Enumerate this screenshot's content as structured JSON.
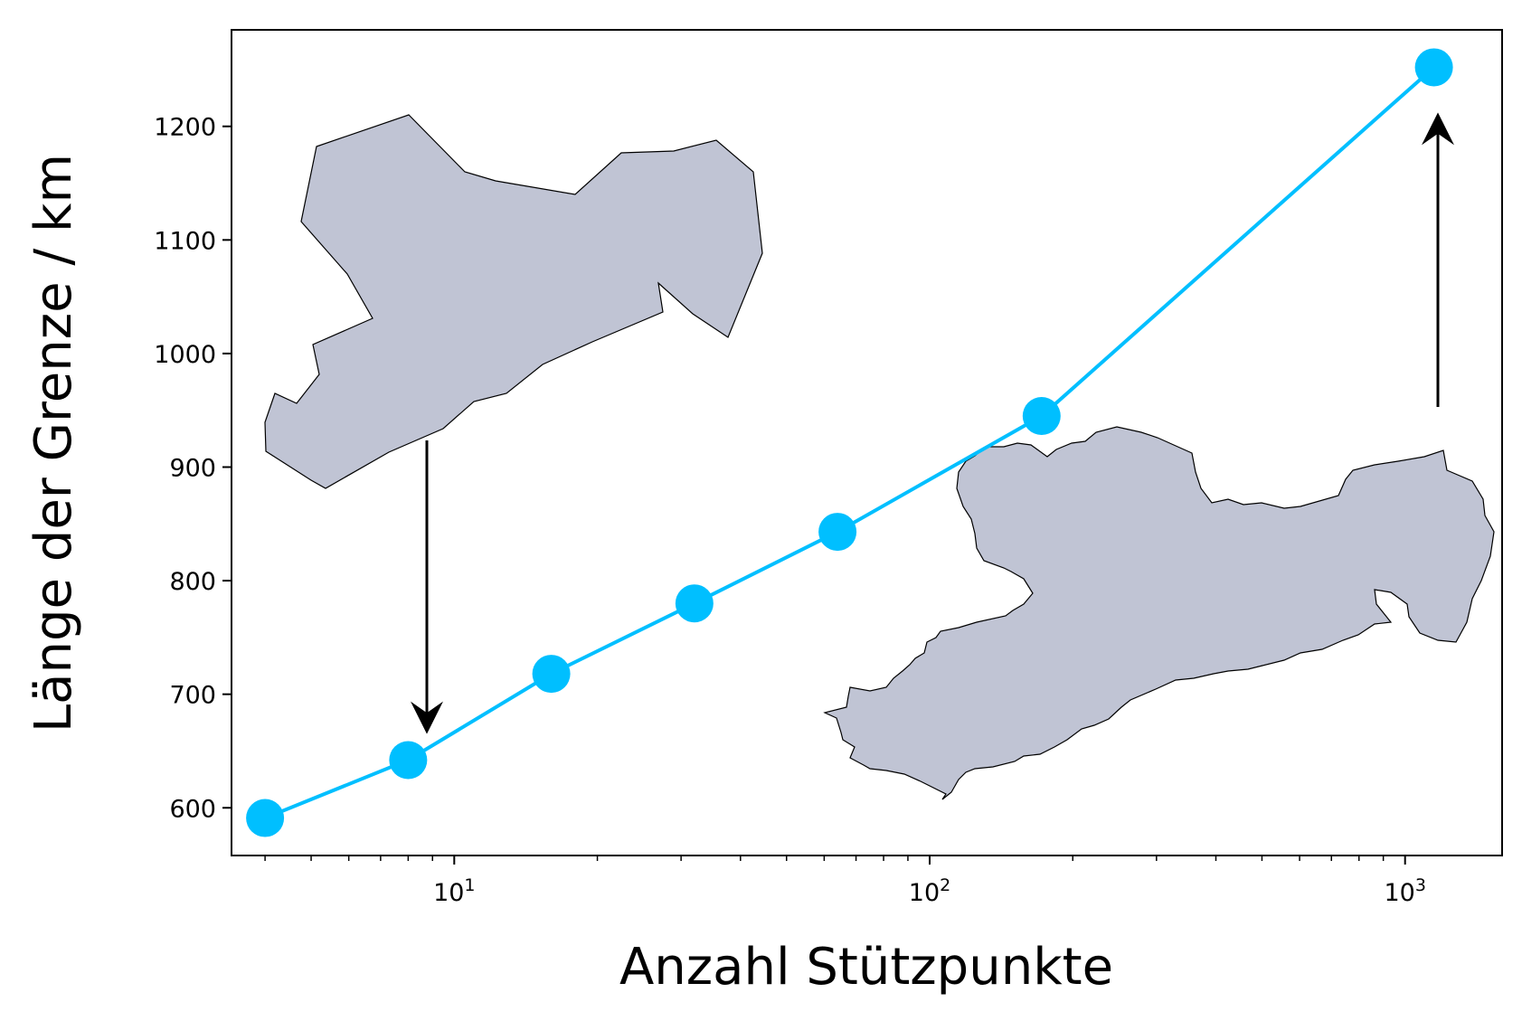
{
  "chart_data": {
    "type": "line",
    "title": "",
    "xlabel": "Anzahl Stützpunkte",
    "ylabel": "Länge der Grenze / km",
    "x_scale": "log",
    "xlim": [
      3.4,
      1600
    ],
    "ylim": [
      558,
      1285
    ],
    "x_ticks": [
      {
        "value": 10,
        "base": "10",
        "exp": "1"
      },
      {
        "value": 100,
        "base": "10",
        "exp": "2"
      },
      {
        "value": 1000,
        "base": "10",
        "exp": "3"
      }
    ],
    "y_ticks": [
      600,
      700,
      800,
      900,
      1000,
      1100,
      1200
    ],
    "grid": false,
    "legend": "none",
    "series": [
      {
        "color": "#00bfff",
        "marker": "circle",
        "x": [
          4,
          8,
          16,
          32,
          64,
          172,
          1150
        ],
        "y": [
          591,
          642,
          718,
          780,
          843,
          945,
          1252
        ]
      }
    ],
    "annotations": [
      {
        "kind": "arrow",
        "from": "coarse-outline",
        "to_point_index": 1,
        "direction": "down"
      },
      {
        "kind": "arrow",
        "from": "detailed-outline",
        "to_point_index": 6,
        "direction": "up"
      }
    ],
    "inset_fill": "#c0c4d4"
  }
}
